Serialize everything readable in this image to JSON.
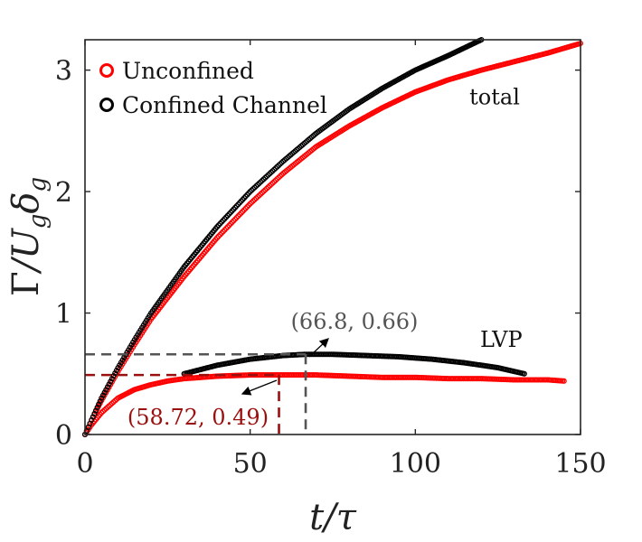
{
  "chart_data": {
    "type": "scatter",
    "xlabel": "t/τ",
    "ylabel": "Γ/U_g δ_g",
    "xlim": [
      0,
      150
    ],
    "ylim": [
      0,
      3.25
    ],
    "xticks": [
      0,
      50,
      100,
      150
    ],
    "yticks": [
      0,
      1,
      2,
      3
    ],
    "xtick_labels": [
      "0",
      "50",
      "100",
      "150"
    ],
    "ytick_labels": [
      "0",
      "1",
      "2",
      "3"
    ],
    "grid": false,
    "legend_position": "top-left",
    "series": [
      {
        "name": "Unconfined",
        "color": "#ff0000",
        "marker": "open-circle",
        "curves": {
          "total": {
            "x": [
              0,
              2,
              5,
              10,
              15,
              20,
              30,
              40,
              50,
              60,
              70,
              80,
              90,
              100,
              110,
              120,
              130,
              140,
              150
            ],
            "y": [
              0,
              0.12,
              0.28,
              0.52,
              0.74,
              0.95,
              1.3,
              1.62,
              1.9,
              2.15,
              2.37,
              2.54,
              2.69,
              2.82,
              2.92,
              3.0,
              3.07,
              3.14,
              3.22
            ]
          },
          "lvp": {
            "x": [
              0,
              2,
              5,
              10,
              15,
              20,
              25,
              30,
              40,
              50,
              58.72,
              70,
              80,
              90,
              100,
              110,
              120,
              130,
              140,
              145
            ],
            "y": [
              0,
              0.08,
              0.18,
              0.3,
              0.37,
              0.41,
              0.44,
              0.46,
              0.48,
              0.49,
              0.49,
              0.49,
              0.48,
              0.47,
              0.47,
              0.46,
              0.46,
              0.45,
              0.45,
              0.44
            ]
          }
        }
      },
      {
        "name": "Confined Channel",
        "color": "#000000",
        "marker": "open-circle",
        "curves": {
          "total": {
            "x": [
              0,
              2,
              5,
              10,
              15,
              20,
              30,
              40,
              50,
              60,
              70,
              80,
              90,
              100,
              110,
              120
            ],
            "y": [
              0,
              0.12,
              0.3,
              0.55,
              0.78,
              1.0,
              1.38,
              1.71,
              2.0,
              2.25,
              2.48,
              2.68,
              2.85,
              3.0,
              3.12,
              3.25
            ]
          },
          "lvp": {
            "x": [
              30,
              40,
              50,
              60,
              66.8,
              75,
              85,
              95,
              105,
              115,
              125,
              133
            ],
            "y": [
              0.5,
              0.57,
              0.62,
              0.65,
              0.66,
              0.66,
              0.65,
              0.64,
              0.62,
              0.59,
              0.55,
              0.5
            ]
          }
        }
      }
    ],
    "annotations": [
      {
        "text": "total",
        "x": 124,
        "y": 2.72
      },
      {
        "text": "LVP",
        "x": 126,
        "y": 0.72
      }
    ],
    "highlighted_points": [
      {
        "series": "Confined Channel",
        "x": 66.8,
        "y": 0.66,
        "label": "(66.8, 0.66)",
        "color": "#555555"
      },
      {
        "series": "Unconfined",
        "x": 58.72,
        "y": 0.49,
        "label": "(58.72, 0.49)",
        "color": "#9a1010"
      }
    ]
  }
}
